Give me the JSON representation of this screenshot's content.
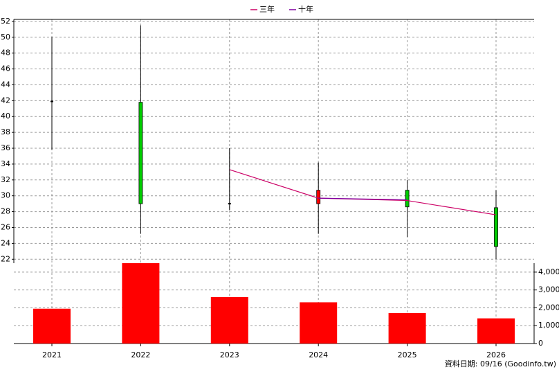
{
  "chart_data": {
    "type": "candlestick",
    "categories": [
      "2021",
      "2022",
      "2023",
      "2024",
      "2025",
      "2026"
    ],
    "open": [
      41.9,
      41.8,
      29.0,
      29.0,
      30.7,
      28.5
    ],
    "high": [
      50.0,
      51.5,
      36.0,
      34.2,
      32.0,
      30.7
    ],
    "low": [
      35.8,
      25.2,
      28.2,
      25.2,
      24.8,
      22.0
    ],
    "close": [
      41.9,
      29.0,
      29.0,
      30.7,
      28.6,
      23.6
    ],
    "up_color": "#ff0000",
    "down_color": "#00cc00",
    "series": [
      {
        "name": "三年",
        "color": "#cc0066",
        "values": [
          null,
          null,
          33.3,
          29.7,
          29.4,
          27.6
        ]
      },
      {
        "name": "十年",
        "color": "#8000a0",
        "values": [
          null,
          null,
          null,
          29.7,
          29.5,
          null
        ]
      }
    ],
    "volume": {
      "color": "#ff0000",
      "values": [
        1950,
        4500,
        2600,
        2310,
        1710,
        1410
      ],
      "axis": "y2"
    },
    "ylim": [
      21.5,
      52.25
    ],
    "yticks": [
      22,
      24,
      26,
      28,
      30,
      32,
      34,
      36,
      38,
      40,
      42,
      44,
      46,
      48,
      50,
      52
    ],
    "y2lim": [
      0,
      4500
    ],
    "y2ticks": [
      0,
      {
        "value": 1000,
        "label": "1,000"
      },
      {
        "value": 2000,
        "label": "2,000"
      },
      {
        "value": 3000,
        "label": "3,000"
      },
      {
        "value": 4000,
        "label": "4,000"
      }
    ],
    "grid": true,
    "footer": "資料日期: 09/16  (Goodinfo.tw)"
  }
}
